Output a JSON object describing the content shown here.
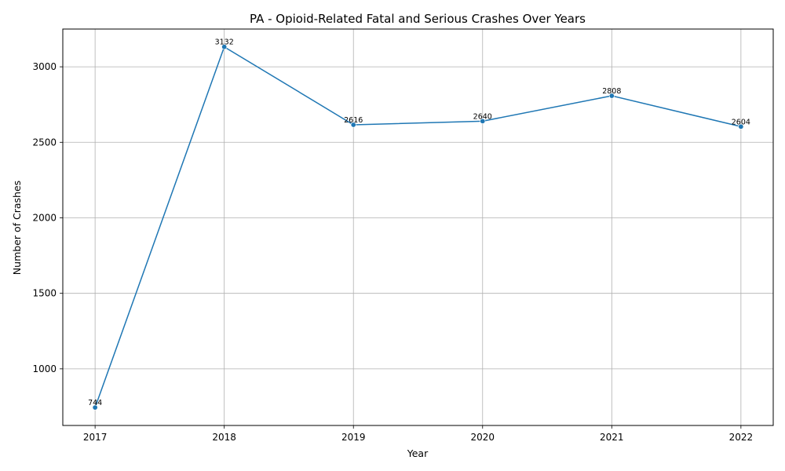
{
  "chart_data": {
    "type": "line",
    "title": "PA - Opioid-Related Fatal and Serious Crashes Over Years",
    "xlabel": "Year",
    "ylabel": "Number of Crashes",
    "x": [
      2017,
      2018,
      2019,
      2020,
      2021,
      2022
    ],
    "x_tick_labels": [
      "2017",
      "2018",
      "2019",
      "2020",
      "2021",
      "2022"
    ],
    "xlim": [
      2016.75,
      2022.25
    ],
    "y_ticks": [
      1000,
      1500,
      2000,
      2500,
      3000
    ],
    "y_tick_labels": [
      "1000",
      "1500",
      "2000",
      "2500",
      "3000"
    ],
    "ylim": [
      625,
      3250
    ],
    "grid": true,
    "series": [
      {
        "values": [
          744,
          3132,
          2616,
          2640,
          2808,
          2604
        ],
        "data_labels": [
          "744",
          "3132",
          "2616",
          "2640",
          "2808",
          "2604"
        ],
        "color": "#1f77b4"
      }
    ]
  }
}
